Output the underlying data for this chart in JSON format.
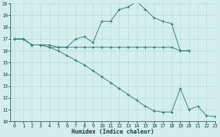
{
  "line1_x": [
    0,
    1,
    2,
    3,
    4,
    5,
    6,
    7,
    8,
    9,
    10,
    11,
    12,
    13,
    14,
    15,
    16,
    17,
    18,
    19,
    20
  ],
  "line1_y": [
    17.0,
    17.0,
    16.5,
    16.5,
    16.5,
    16.3,
    16.3,
    17.0,
    17.2,
    16.7,
    18.5,
    18.5,
    19.5,
    19.7,
    20.2,
    19.5,
    18.8,
    18.5,
    18.3,
    16.0,
    16.0
  ],
  "line2_x": [
    0,
    1,
    2,
    3,
    4,
    5,
    6,
    7,
    8,
    9,
    10,
    11,
    12,
    13,
    14,
    15,
    16,
    17,
    18,
    19,
    20
  ],
  "line2_y": [
    17.0,
    17.0,
    16.5,
    16.5,
    16.3,
    16.3,
    16.3,
    16.3,
    16.3,
    16.3,
    16.3,
    16.3,
    16.3,
    16.3,
    16.3,
    16.3,
    16.3,
    16.3,
    16.3,
    16.0,
    16.0
  ],
  "line3_x": [
    0,
    1,
    2,
    3,
    4,
    5,
    6,
    7,
    8,
    9,
    10,
    11,
    12,
    13,
    14,
    15,
    16,
    17,
    18,
    19,
    20,
    21,
    22,
    23
  ],
  "line3_y": [
    17.0,
    17.0,
    16.5,
    16.5,
    16.3,
    16.0,
    15.6,
    15.2,
    14.8,
    14.3,
    13.8,
    13.3,
    12.8,
    12.3,
    11.8,
    11.3,
    10.9,
    10.8,
    10.8,
    12.8,
    11.0,
    11.3,
    10.5,
    10.4
  ],
  "color": "#2e7d6e",
  "bg_color": "#d4eeee",
  "grid_color": "#b8d8d8",
  "xlabel": "Humidex (Indice chaleur)",
  "xlim": [
    -0.5,
    23
  ],
  "ylim": [
    10,
    20
  ],
  "xticks": [
    0,
    1,
    2,
    3,
    4,
    5,
    6,
    7,
    8,
    9,
    10,
    11,
    12,
    13,
    14,
    15,
    16,
    17,
    18,
    19,
    20,
    21,
    22,
    23
  ],
  "yticks": [
    10,
    11,
    12,
    13,
    14,
    15,
    16,
    17,
    18,
    19,
    20
  ],
  "tick_fontsize": 5.0,
  "xlabel_fontsize": 6.0
}
